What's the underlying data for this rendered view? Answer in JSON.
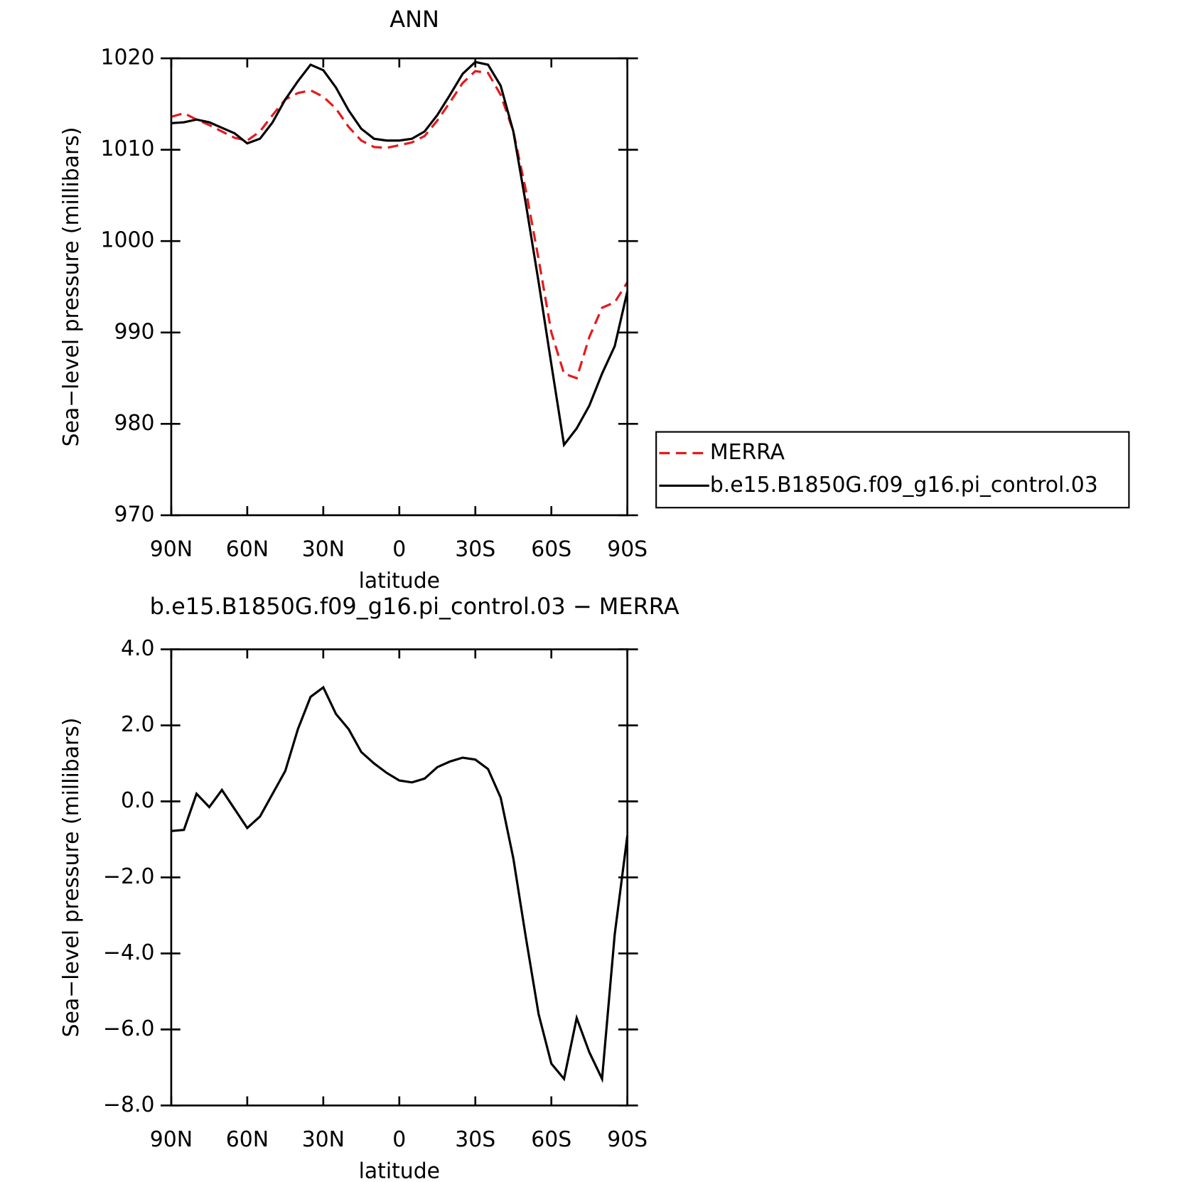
{
  "chart_data": [
    {
      "type": "line",
      "title": "ANN",
      "xlabel": "latitude",
      "ylabel": "Sea−level pressure (millibars)",
      "x": [
        90,
        85,
        80,
        75,
        70,
        65,
        60,
        55,
        50,
        45,
        40,
        35,
        30,
        25,
        20,
        15,
        10,
        5,
        0,
        -5,
        -10,
        -15,
        -20,
        -25,
        -30,
        -35,
        -40,
        -45,
        -50,
        -55,
        -60,
        -65,
        -70,
        -75,
        -80,
        -85,
        -90
      ],
      "xlim": [
        90,
        -90
      ],
      "xticks": [
        {
          "value": 90,
          "label": "90N"
        },
        {
          "value": 60,
          "label": "60N"
        },
        {
          "value": 30,
          "label": "30N"
        },
        0,
        {
          "value": -30,
          "label": "30S"
        },
        {
          "value": -60,
          "label": "60S"
        },
        {
          "value": -90,
          "label": "90S"
        }
      ],
      "ylim": [
        970,
        1020
      ],
      "yticks": [
        970,
        980,
        990,
        1000,
        1010,
        1020
      ],
      "legend": "right",
      "series": [
        {
          "name": "MERRA",
          "color": "#e41a1c",
          "dash": true,
          "values": [
            1013.6,
            1014.0,
            1013.3,
            1012.7,
            1012.0,
            1011.3,
            1011.0,
            1012.0,
            1013.8,
            1015.5,
            1016.2,
            1016.5,
            1015.8,
            1014.5,
            1012.5,
            1011.0,
            1010.3,
            1010.2,
            1010.5,
            1010.8,
            1011.5,
            1013.2,
            1015.2,
            1017.3,
            1018.6,
            1018.4,
            1016.0,
            1012.0,
            1005.5,
            998.0,
            990.0,
            985.5,
            985.0,
            989.5,
            992.7,
            993.3,
            995.5
          ]
        },
        {
          "name": "b.e15.B1850G.f09_g16.pi_control.03",
          "color": "#000000",
          "dash": false,
          "values": [
            1012.9,
            1013.0,
            1013.3,
            1013.0,
            1012.4,
            1011.8,
            1010.7,
            1011.2,
            1013.0,
            1015.5,
            1017.5,
            1019.3,
            1018.7,
            1016.8,
            1014.3,
            1012.3,
            1011.2,
            1011.0,
            1011.0,
            1011.2,
            1012.0,
            1013.8,
            1016.0,
            1018.3,
            1019.6,
            1019.3,
            1017.0,
            1012.0,
            1004.0,
            995.5,
            986.5,
            977.7,
            979.5,
            982.0,
            985.5,
            988.5,
            994.5
          ]
        }
      ]
    },
    {
      "type": "line",
      "title": "b.e15.B1850G.f09_g16.pi_control.03 − MERRA",
      "xlabel": "latitude",
      "ylabel": "Sea−level pressure (millibars)",
      "x": [
        90,
        85,
        80,
        75,
        70,
        65,
        60,
        55,
        50,
        45,
        40,
        35,
        30,
        25,
        20,
        15,
        10,
        5,
        0,
        -5,
        -10,
        -15,
        -20,
        -25,
        -30,
        -35,
        -40,
        -45,
        -50,
        -55,
        -60,
        -65,
        -70,
        -75,
        -80,
        -85,
        -90
      ],
      "xlim": [
        90,
        -90
      ],
      "xticks": [
        {
          "value": 90,
          "label": "90N"
        },
        {
          "value": 60,
          "label": "60N"
        },
        {
          "value": 30,
          "label": "30N"
        },
        0,
        {
          "value": -30,
          "label": "30S"
        },
        {
          "value": -60,
          "label": "60S"
        },
        {
          "value": -90,
          "label": "90S"
        }
      ],
      "ylim": [
        -8,
        4
      ],
      "yticks": [
        {
          "value": -8,
          "label": "−8.0"
        },
        {
          "value": -6,
          "label": "−6.0"
        },
        {
          "value": -4,
          "label": "−4.0"
        },
        {
          "value": -2,
          "label": "−2.0"
        },
        {
          "value": 0,
          "label": "0.0"
        },
        {
          "value": 2,
          "label": "2.0"
        },
        {
          "value": 4,
          "label": "4.0"
        }
      ],
      "color": "#000000",
      "values": [
        -0.78,
        -0.75,
        0.2,
        -0.15,
        0.3,
        -0.2,
        -0.7,
        -0.4,
        0.2,
        0.8,
        1.9,
        2.75,
        3.0,
        2.3,
        1.9,
        1.3,
        1.0,
        0.75,
        0.55,
        0.5,
        0.6,
        0.9,
        1.05,
        1.15,
        1.1,
        0.85,
        0.1,
        -1.5,
        -3.6,
        -5.6,
        -6.9,
        -7.3,
        -5.7,
        -6.6,
        -7.3,
        -3.5,
        -0.9
      ]
    }
  ]
}
